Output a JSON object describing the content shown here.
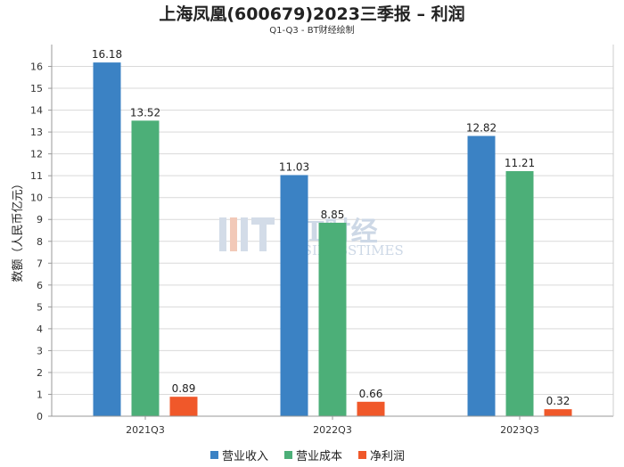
{
  "chart_data": {
    "type": "bar",
    "title": "上海凤凰(600679)2023三季报 – 利润",
    "subtitle": "Q1-Q3 - BT财经绘制",
    "ylabel": "数额（人民币亿元）",
    "xlabel": "",
    "categories": [
      "2021Q3",
      "2022Q3",
      "2023Q3"
    ],
    "ylim": [
      0,
      17
    ],
    "yticks": [
      0,
      1,
      2,
      3,
      4,
      5,
      6,
      7,
      8,
      9,
      10,
      11,
      12,
      13,
      14,
      15,
      16
    ],
    "grid": true,
    "legend_position": "bottom",
    "series": [
      {
        "name": "营业收入",
        "color": "#3b82c4",
        "values": [
          16.18,
          11.03,
          12.82
        ]
      },
      {
        "name": "营业成本",
        "color": "#4caf78",
        "values": [
          13.52,
          8.85,
          11.21
        ]
      },
      {
        "name": "净利润",
        "color": "#f0582a",
        "values": [
          0.89,
          0.66,
          0.32
        ]
      }
    ]
  },
  "watermark": {
    "line1": "BT财经",
    "line2": "BUSINESSTIMES"
  }
}
